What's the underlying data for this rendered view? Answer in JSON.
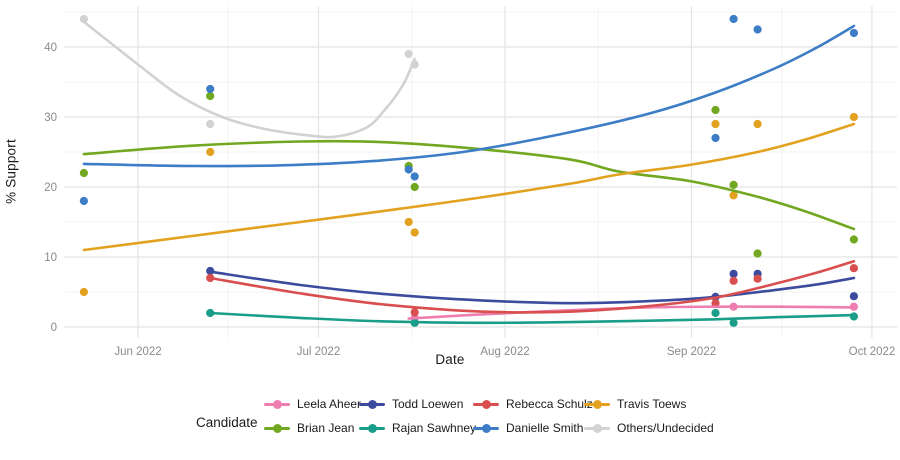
{
  "chart_data": {
    "type": "scatter",
    "description": "Scatter points with smoothed trend lines of polling support by candidate over time",
    "xlabel": "Date",
    "ylabel": "% Support",
    "x_ticks": [
      {
        "date": "2022-06-01",
        "label": "Jun 2022"
      },
      {
        "date": "2022-07-01",
        "label": "Jul 2022"
      },
      {
        "date": "2022-08-01",
        "label": "Aug 2022"
      },
      {
        "date": "2022-09-01",
        "label": "Sep 2022"
      },
      {
        "date": "2022-10-01",
        "label": "Oct 2022"
      }
    ],
    "y_ticks": [
      0,
      10,
      20,
      30,
      40
    ],
    "y_minor": [
      5,
      15,
      25,
      35,
      45
    ],
    "grid": true,
    "legend_position": "bottom",
    "series": [
      {
        "name": "Leela Aheer",
        "color": "#ee7eb0",
        "points": [
          [
            "2022-07-17",
            1.3
          ],
          [
            "2022-09-08",
            2.9
          ],
          [
            "2022-09-28",
            2.9
          ]
        ],
        "trend": [
          [
            "2022-07-16",
            1.2
          ],
          [
            "2022-07-28",
            1.8
          ],
          [
            "2022-08-12",
            2.4
          ],
          [
            "2022-08-25",
            2.8
          ],
          [
            "2022-09-05",
            2.9
          ],
          [
            "2022-09-15",
            2.9
          ],
          [
            "2022-09-28",
            2.8
          ]
        ]
      },
      {
        "name": "Brian Jean",
        "color": "#72a821",
        "points": [
          [
            "2022-05-23",
            22
          ],
          [
            "2022-06-13",
            33
          ],
          [
            "2022-07-16",
            23
          ],
          [
            "2022-07-17",
            20
          ],
          [
            "2022-09-05",
            31
          ],
          [
            "2022-09-08",
            20.3
          ],
          [
            "2022-09-12",
            10.5
          ],
          [
            "2022-09-28",
            12.5
          ]
        ],
        "trend": [
          [
            "2022-05-23",
            24.7
          ],
          [
            "2022-06-10",
            25.9
          ],
          [
            "2022-06-28",
            26.5
          ],
          [
            "2022-07-12",
            26.4
          ],
          [
            "2022-07-28",
            25.4
          ],
          [
            "2022-08-12",
            23.9
          ],
          [
            "2022-08-20",
            22.2
          ],
          [
            "2022-09-01",
            20.8
          ],
          [
            "2022-09-12",
            18.6
          ],
          [
            "2022-09-20",
            16.5
          ],
          [
            "2022-09-28",
            14.0
          ]
        ]
      },
      {
        "name": "Todd Loewen",
        "color": "#3c4b9e",
        "points": [
          [
            "2022-06-13",
            8
          ],
          [
            "2022-09-05",
            4.3
          ],
          [
            "2022-09-08",
            7.6
          ],
          [
            "2022-09-12",
            7.6
          ],
          [
            "2022-09-28",
            4.4
          ]
        ],
        "trend": [
          [
            "2022-06-13",
            7.9
          ],
          [
            "2022-06-28",
            6.0
          ],
          [
            "2022-07-12",
            4.7
          ],
          [
            "2022-07-28",
            3.8
          ],
          [
            "2022-08-12",
            3.4
          ],
          [
            "2022-08-25",
            3.7
          ],
          [
            "2022-09-05",
            4.3
          ],
          [
            "2022-09-15",
            5.3
          ],
          [
            "2022-09-22",
            6.1
          ],
          [
            "2022-09-28",
            7.0
          ]
        ]
      },
      {
        "name": "Rajan Sawhney",
        "color": "#1a9e8a",
        "points": [
          [
            "2022-06-13",
            2
          ],
          [
            "2022-07-17",
            0.6
          ],
          [
            "2022-09-05",
            2.0
          ],
          [
            "2022-09-08",
            0.6
          ],
          [
            "2022-09-28",
            1.5
          ]
        ],
        "trend": [
          [
            "2022-06-13",
            2.0
          ],
          [
            "2022-06-28",
            1.3
          ],
          [
            "2022-07-12",
            0.8
          ],
          [
            "2022-07-28",
            0.6
          ],
          [
            "2022-08-12",
            0.7
          ],
          [
            "2022-08-25",
            0.9
          ],
          [
            "2022-09-05",
            1.1
          ],
          [
            "2022-09-15",
            1.4
          ],
          [
            "2022-09-28",
            1.7
          ]
        ]
      },
      {
        "name": "Rebecca Schulz",
        "color": "#d94f4f",
        "points": [
          [
            "2022-06-13",
            7
          ],
          [
            "2022-07-17",
            2.1
          ],
          [
            "2022-09-05",
            3.4
          ],
          [
            "2022-09-08",
            6.6
          ],
          [
            "2022-09-12",
            6.9
          ],
          [
            "2022-09-28",
            8.4
          ]
        ],
        "trend": [
          [
            "2022-06-13",
            7.0
          ],
          [
            "2022-06-28",
            4.8
          ],
          [
            "2022-07-12",
            3.2
          ],
          [
            "2022-07-28",
            2.2
          ],
          [
            "2022-08-12",
            2.2
          ],
          [
            "2022-08-25",
            3.0
          ],
          [
            "2022-09-05",
            4.2
          ],
          [
            "2022-09-15",
            6.2
          ],
          [
            "2022-09-22",
            7.8
          ],
          [
            "2022-09-28",
            9.4
          ]
        ]
      },
      {
        "name": "Danielle Smith",
        "color": "#3d7dc6",
        "points": [
          [
            "2022-05-23",
            18
          ],
          [
            "2022-06-13",
            34
          ],
          [
            "2022-07-16",
            22.5
          ],
          [
            "2022-07-17",
            21.5
          ],
          [
            "2022-09-05",
            27
          ],
          [
            "2022-09-08",
            44
          ],
          [
            "2022-09-12",
            42.5
          ],
          [
            "2022-09-28",
            42
          ]
        ],
        "trend": [
          [
            "2022-05-23",
            23.3
          ],
          [
            "2022-06-10",
            23.0
          ],
          [
            "2022-06-25",
            23.1
          ],
          [
            "2022-07-10",
            23.7
          ],
          [
            "2022-07-25",
            25.0
          ],
          [
            "2022-08-10",
            27.5
          ],
          [
            "2022-08-25",
            30.5
          ],
          [
            "2022-09-05",
            33.5
          ],
          [
            "2022-09-15",
            37.0
          ],
          [
            "2022-09-22",
            40.0
          ],
          [
            "2022-09-28",
            43.0
          ]
        ]
      },
      {
        "name": "Travis Toews",
        "color": "#e2a220",
        "points": [
          [
            "2022-05-23",
            5
          ],
          [
            "2022-06-13",
            25
          ],
          [
            "2022-07-16",
            15
          ],
          [
            "2022-07-17",
            13.5
          ],
          [
            "2022-09-05",
            29
          ],
          [
            "2022-09-08",
            18.8
          ],
          [
            "2022-09-12",
            29
          ],
          [
            "2022-09-28",
            30
          ]
        ],
        "trend": [
          [
            "2022-05-23",
            11.0
          ],
          [
            "2022-06-10",
            13.0
          ],
          [
            "2022-06-28",
            15.0
          ],
          [
            "2022-07-12",
            16.6
          ],
          [
            "2022-07-28",
            18.5
          ],
          [
            "2022-08-12",
            20.5
          ],
          [
            "2022-08-20",
            21.8
          ],
          [
            "2022-09-01",
            23.2
          ],
          [
            "2022-09-12",
            25.0
          ],
          [
            "2022-09-20",
            26.8
          ],
          [
            "2022-09-28",
            29.0
          ]
        ]
      },
      {
        "name": "Others/Undecided",
        "color": "#d2d2d2",
        "points": [
          [
            "2022-05-23",
            44
          ],
          [
            "2022-06-13",
            29
          ],
          [
            "2022-07-16",
            39
          ],
          [
            "2022-07-17",
            37.5
          ]
        ],
        "trend": [
          [
            "2022-05-23",
            43.6
          ],
          [
            "2022-06-01",
            37.5
          ],
          [
            "2022-06-08",
            33.0
          ],
          [
            "2022-06-15",
            30.0
          ],
          [
            "2022-06-22",
            28.3
          ],
          [
            "2022-06-29",
            27.4
          ],
          [
            "2022-07-04",
            27.2
          ],
          [
            "2022-07-09",
            28.5
          ],
          [
            "2022-07-12",
            31.0
          ],
          [
            "2022-07-15",
            34.5
          ],
          [
            "2022-07-17",
            38.3
          ]
        ]
      }
    ]
  },
  "legend": {
    "title": "Candidate",
    "rows": [
      [
        "Leela Aheer",
        "Todd Loewen",
        "Rebecca Schulz",
        "Travis Toews"
      ],
      [
        "Brian Jean",
        "Rajan Sawhney",
        "Danielle Smith",
        "Others/Undecided"
      ]
    ]
  }
}
